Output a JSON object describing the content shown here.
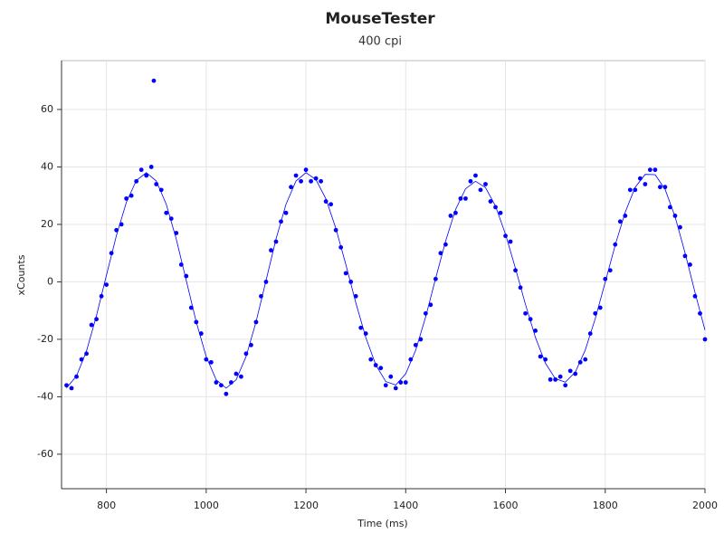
{
  "chart_data": {
    "type": "scatter",
    "title": "MouseTester",
    "subtitle": "400 cpi",
    "x_label": "Time (ms)",
    "y_label": "xCounts",
    "xlim": [
      710,
      2000
    ],
    "ylim": [
      -72,
      77
    ],
    "xticks": [
      800,
      1000,
      1200,
      1400,
      1600,
      1800,
      2000
    ],
    "yticks": [
      -60,
      -40,
      -20,
      0,
      20,
      40,
      60
    ],
    "grid": true,
    "series": [
      {
        "type": "scatter",
        "color": "#0000ff",
        "x": [
          720,
          730,
          740,
          750,
          760,
          770,
          780,
          790,
          800,
          810,
          820,
          830,
          840,
          850,
          860,
          870,
          880,
          890,
          895,
          900,
          910,
          920,
          930,
          940,
          950,
          960,
          970,
          980,
          990,
          1000,
          1010,
          1020,
          1030,
          1040,
          1050,
          1060,
          1070,
          1080,
          1090,
          1100,
          1110,
          1120,
          1130,
          1140,
          1150,
          1160,
          1170,
          1180,
          1190,
          1200,
          1210,
          1220,
          1230,
          1240,
          1250,
          1260,
          1270,
          1280,
          1290,
          1300,
          1310,
          1320,
          1330,
          1340,
          1350,
          1360,
          1370,
          1380,
          1390,
          1400,
          1410,
          1420,
          1430,
          1440,
          1450,
          1460,
          1470,
          1480,
          1490,
          1500,
          1510,
          1520,
          1530,
          1540,
          1550,
          1560,
          1570,
          1580,
          1590,
          1600,
          1610,
          1620,
          1630,
          1640,
          1650,
          1660,
          1670,
          1680,
          1690,
          1700,
          1710,
          1720,
          1730,
          1740,
          1750,
          1760,
          1770,
          1780,
          1790,
          1800,
          1810,
          1820,
          1830,
          1840,
          1850,
          1860,
          1870,
          1880,
          1890,
          1900,
          1910,
          1920,
          1930,
          1940,
          1950,
          1960,
          1970,
          1980,
          1990,
          2000
        ],
        "values": [
          -36,
          -37,
          -33,
          -27,
          -25,
          -15,
          -13,
          -5,
          -1,
          10,
          18,
          20,
          29,
          30,
          35,
          39,
          37,
          40,
          70,
          34,
          32,
          24,
          22,
          17,
          6,
          2,
          -9,
          -14,
          -18,
          -27,
          -28,
          -35,
          -36,
          -39,
          -35,
          -32,
          -33,
          -25,
          -22,
          -14,
          -5,
          0,
          11,
          14,
          21,
          24,
          33,
          37,
          35,
          39,
          35,
          36,
          35,
          28,
          27,
          18,
          12,
          3,
          0,
          -5,
          -16,
          -18,
          -27,
          -29,
          -30,
          -36,
          -33,
          -37,
          -35,
          -35,
          -27,
          -22,
          -20,
          -11,
          -8,
          1,
          10,
          13,
          23,
          24,
          29,
          29,
          35,
          37,
          32,
          34,
          28,
          26,
          24,
          16,
          14,
          4,
          -2,
          -11,
          -13,
          -17,
          -26,
          -27,
          -34,
          -34,
          -33,
          -36,
          -31,
          -32,
          -28,
          -27,
          -18,
          -11,
          -9,
          1,
          4,
          13,
          21,
          23,
          32,
          32,
          36,
          34,
          39,
          39,
          33,
          33,
          26,
          23,
          19,
          9,
          6,
          -5,
          -11,
          -20
        ]
      },
      {
        "type": "line",
        "color": "#0000ff",
        "x": [
          720,
          740,
          760,
          780,
          800,
          820,
          840,
          860,
          880,
          900,
          920,
          940,
          960,
          980,
          1000,
          1020,
          1040,
          1060,
          1080,
          1100,
          1120,
          1140,
          1160,
          1180,
          1200,
          1220,
          1240,
          1260,
          1280,
          1300,
          1320,
          1340,
          1360,
          1380,
          1400,
          1420,
          1440,
          1460,
          1480,
          1500,
          1520,
          1540,
          1560,
          1580,
          1600,
          1620,
          1640,
          1660,
          1680,
          1700,
          1720,
          1740,
          1760,
          1780,
          1800,
          1820,
          1840,
          1860,
          1880,
          1900,
          1920,
          1940,
          1960,
          1980,
          2000
        ],
        "values": [
          -36.9,
          -32.8,
          -24.1,
          -11.8,
          2.3,
          16.1,
          27.7,
          35.3,
          38,
          35.1,
          27,
          14.9,
          0.5,
          -13.9,
          -26,
          -34.1,
          -37,
          -34.1,
          -26,
          -13.9,
          0.5,
          14.9,
          27,
          35.1,
          38,
          35.6,
          28.9,
          18.6,
          6,
          -7.3,
          -19.4,
          -28.9,
          -34.7,
          -35.9,
          -32,
          -23.8,
          -12.2,
          1.2,
          14.2,
          25.2,
          32.4,
          35,
          32.8,
          26.4,
          16.6,
          4.7,
          -7.8,
          -19.3,
          -28.3,
          -33.7,
          -34.9,
          -31.4,
          -23.7,
          -12.8,
          -0.1,
          12.8,
          24.2,
          32.9,
          37.4,
          37.3,
          32.2,
          22.7,
          10.1,
          -3.7,
          -16.8
        ]
      }
    ]
  }
}
